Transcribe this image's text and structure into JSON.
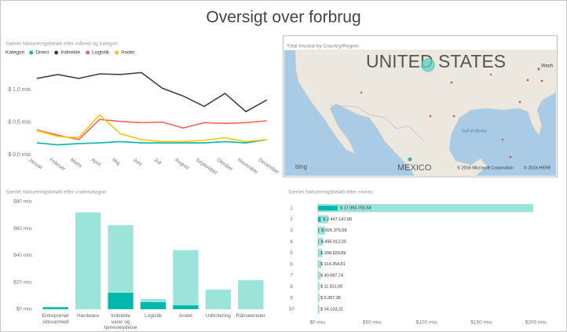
{
  "title": "Oversigt over forbrug",
  "chart_data": [
    {
      "type": "line",
      "title": "Samlet faktureringsbeløb efter måned og kategori",
      "legend_title": "Kategori",
      "categories": [
        "Januar",
        "Februar",
        "Marts",
        "April",
        "Maj",
        "Juni",
        "Juli",
        "August",
        "September",
        "Oktober",
        "November",
        "December"
      ],
      "series": [
        {
          "name": "Direct",
          "color": "#01B8AA",
          "values": [
            0.18,
            0.15,
            0.17,
            0.18,
            0.2,
            0.18,
            0.18,
            0.18,
            0.18,
            0.2,
            0.18,
            0.23
          ]
        },
        {
          "name": "Indirekte",
          "color": "#374649",
          "values": [
            1.17,
            1.23,
            1.17,
            1.24,
            1.23,
            1.26,
            1.02,
            0.9,
            0.74,
            0.94,
            0.66,
            0.84
          ]
        },
        {
          "name": "Logistik",
          "color": "#FD625E",
          "values": [
            0.38,
            0.3,
            0.23,
            0.54,
            0.51,
            0.49,
            0.5,
            0.41,
            0.49,
            0.48,
            0.49,
            0.52
          ]
        },
        {
          "name": "Andet",
          "color": "#F2C80F",
          "values": [
            0.37,
            0.28,
            0.26,
            0.61,
            0.32,
            0.23,
            0.2,
            0.2,
            0.22,
            0.26,
            0.2,
            0.23
          ]
        }
      ],
      "ylim": [
        0,
        1.35
      ],
      "yticks": [
        {
          "value": 0,
          "label": "$ 0,0 mio."
        },
        {
          "value": 0.5,
          "label": "$ 0,5 mio."
        },
        {
          "value": 1,
          "label": "$ 1,0 mio."
        }
      ],
      "grid": false
    },
    {
      "type": "bar",
      "title": "Samlet faktureringsbeløb efter underkategori",
      "stacked": true,
      "categories": [
        "Entreprenør virksomhed",
        "Hardware",
        "Indirekte varer og tjenesteydelser",
        "Logistik",
        "Andet",
        "Udlicitering",
        "Råmaterialer"
      ],
      "series": [
        {
          "color": "#01B8AA",
          "values": [
            1.5,
            0,
            12.3,
            5.3,
            2.9,
            0,
            0
          ]
        },
        {
          "color": "#9CE3DA",
          "values": [
            0.3,
            72,
            50.2,
            2.3,
            41.1,
            14.6,
            21.6
          ]
        }
      ],
      "ylim": [
        0,
        80
      ],
      "yticks": [
        {
          "value": 0,
          "label": "$0 mio."
        },
        {
          "value": 20,
          "label": "$20 mio."
        },
        {
          "value": 40,
          "label": "$40 mio."
        },
        {
          "value": 60,
          "label": "$60 mio."
        },
        {
          "value": 80,
          "label": "$80 mio."
        }
      ],
      "grid": false
    },
    {
      "type": "bar",
      "title": "Samlet faktureringsbeløb efter niveau",
      "horizontal": true,
      "overlap": true,
      "categories": [
        "1",
        "2",
        "3",
        "4",
        "5",
        "6",
        "7",
        "8",
        "9",
        "10"
      ],
      "series": [
        {
          "color": "#9CE3DA",
          "values": [
            197,
            9.4,
            6.5,
            4.3,
            3.6,
            2.9,
            2.2,
            1.4,
            1.4,
            1.4
          ]
        },
        {
          "color": "#01B8AA",
          "values": [
            17.99375058,
            2.467147,
            0.92637558,
            0.495012,
            0.20882989,
            0.11435481,
            0.04068774,
            0.011511,
            0.00539736,
            0.03410321
          ],
          "value_labels": [
            "$ 17.993.750,58",
            "$ 2.467.147,00",
            "$ 926.375,58",
            "$ 495.012,00",
            "$ 208.829,89",
            "$ 114.354,81",
            "$ 40.687,74",
            "$ 11.511,00",
            "$ 5.397,36",
            "$ 34.103,21"
          ]
        }
      ],
      "xlim": [
        0,
        200
      ],
      "xticks": [
        {
          "value": 0,
          "label": "$0 mio."
        },
        {
          "value": 50,
          "label": "$50 mio."
        },
        {
          "value": 100,
          "label": "$100 mio."
        },
        {
          "value": 150,
          "label": "$150 mio."
        },
        {
          "value": 200,
          "label": "$200 mio."
        }
      ],
      "grid": false
    }
  ],
  "map": {
    "title": "Total Invoice by Country/Region",
    "country_labels": [
      "UNITED STATES",
      "MEXICO"
    ],
    "sea_label": "Gulf of Mexico",
    "city_label": "Wash",
    "logo": "bing",
    "copyright": [
      "© 2016 Microsoft Corporation",
      "© 2016 HERE"
    ]
  }
}
